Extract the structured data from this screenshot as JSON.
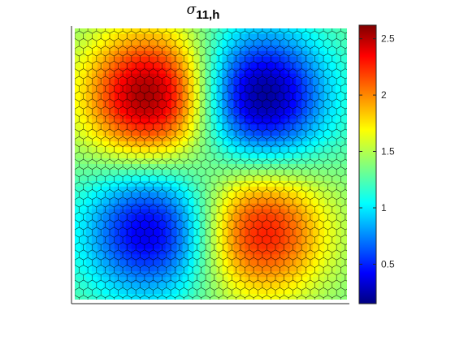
{
  "chart_data": {
    "type": "heatmap",
    "title_symbol": "σ",
    "title_subscript": "11,h",
    "colormap": "jet",
    "colorbar": {
      "range": [
        0.15,
        2.62
      ],
      "ticks": [
        {
          "value": 0.5,
          "label": "0.5"
        },
        {
          "value": 1.0,
          "label": "1"
        },
        {
          "value": 1.5,
          "label": "1.5"
        },
        {
          "value": 2.0,
          "label": "2"
        },
        {
          "value": 2.5,
          "label": "2.5"
        }
      ]
    },
    "grid": "hexagonal mesh overlay",
    "field_peaks": [
      {
        "x": 0.28,
        "y": 0.75,
        "value": 2.6
      },
      {
        "x": 0.68,
        "y": 0.75,
        "value": 0.15
      },
      {
        "x": 0.68,
        "y": 0.25,
        "value": 2.3
      },
      {
        "x": 0.28,
        "y": 0.25,
        "value": 0.35
      }
    ]
  }
}
